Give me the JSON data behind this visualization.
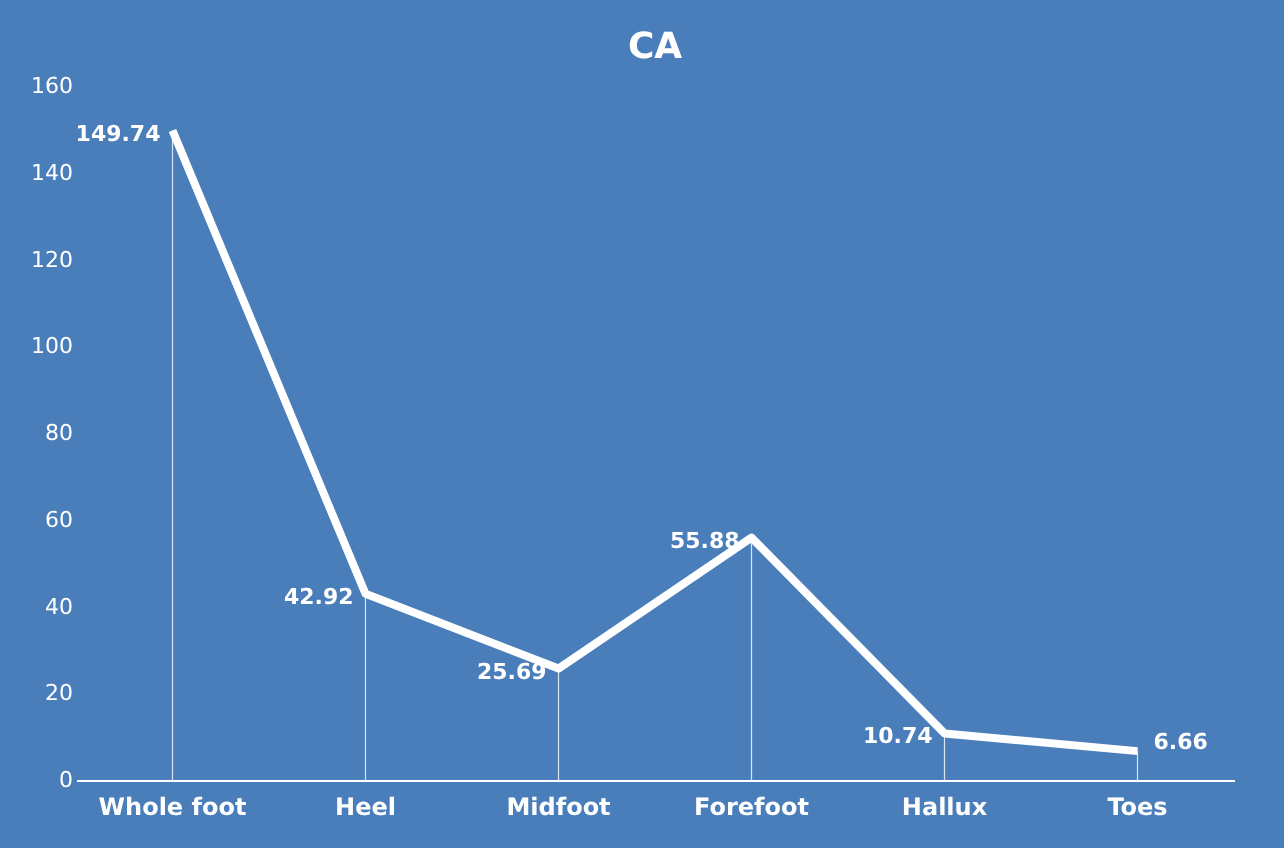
{
  "chart_data": {
    "type": "line",
    "title": "CA",
    "categories": [
      "Whole foot",
      "Heel",
      "Midfoot",
      "Forefoot",
      "Hallux",
      "Toes"
    ],
    "series": [
      {
        "color": "#ffffff",
        "values": [
          149.74,
          42.92,
          25.69,
          55.88,
          10.74,
          6.66
        ]
      }
    ],
    "ylim": [
      0,
      160
    ],
    "yticks": [
      0,
      20,
      40,
      60,
      80,
      100,
      120,
      140,
      160
    ],
    "data_labels": true,
    "grid": "x",
    "marker": "none",
    "line_style": "solid"
  }
}
